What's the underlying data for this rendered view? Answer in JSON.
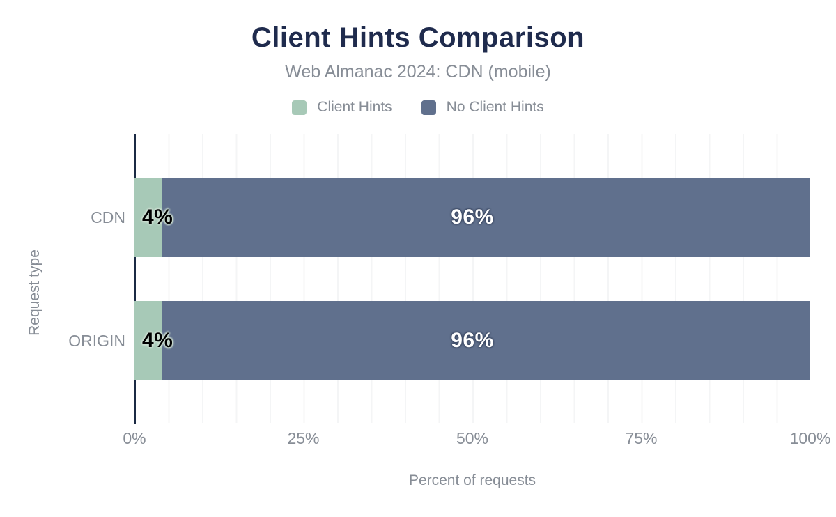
{
  "colors": {
    "title": "#1f2b4d",
    "muted": "#878d96",
    "axis_line": "#1b2a44",
    "gridline": "#f4f5f6",
    "value_label_on_green": "#000000",
    "value_label_on_blue": "#ffffff"
  },
  "chart_data": {
    "type": "bar",
    "orientation": "horizontal",
    "stacked": true,
    "title": "Client Hints Comparison",
    "subtitle": "Web Almanac 2024: CDN (mobile)",
    "xlabel": "Percent of requests",
    "ylabel": "Request type",
    "categories": [
      "CDN",
      "ORIGIN"
    ],
    "series": [
      {
        "name": "Client Hints",
        "color": "#a7c9b7",
        "values": [
          4,
          4
        ],
        "data_labels": [
          "4%",
          "4%"
        ]
      },
      {
        "name": "No Client Hints",
        "color": "#60708d",
        "values": [
          96,
          96
        ],
        "data_labels": [
          "96%",
          "96%"
        ]
      }
    ],
    "xlim": [
      0,
      100
    ],
    "xticks": [
      "0%",
      "25%",
      "50%",
      "75%",
      "100%"
    ],
    "grid": "vertical gridlines every 5%",
    "legend_position": "top-center"
  }
}
